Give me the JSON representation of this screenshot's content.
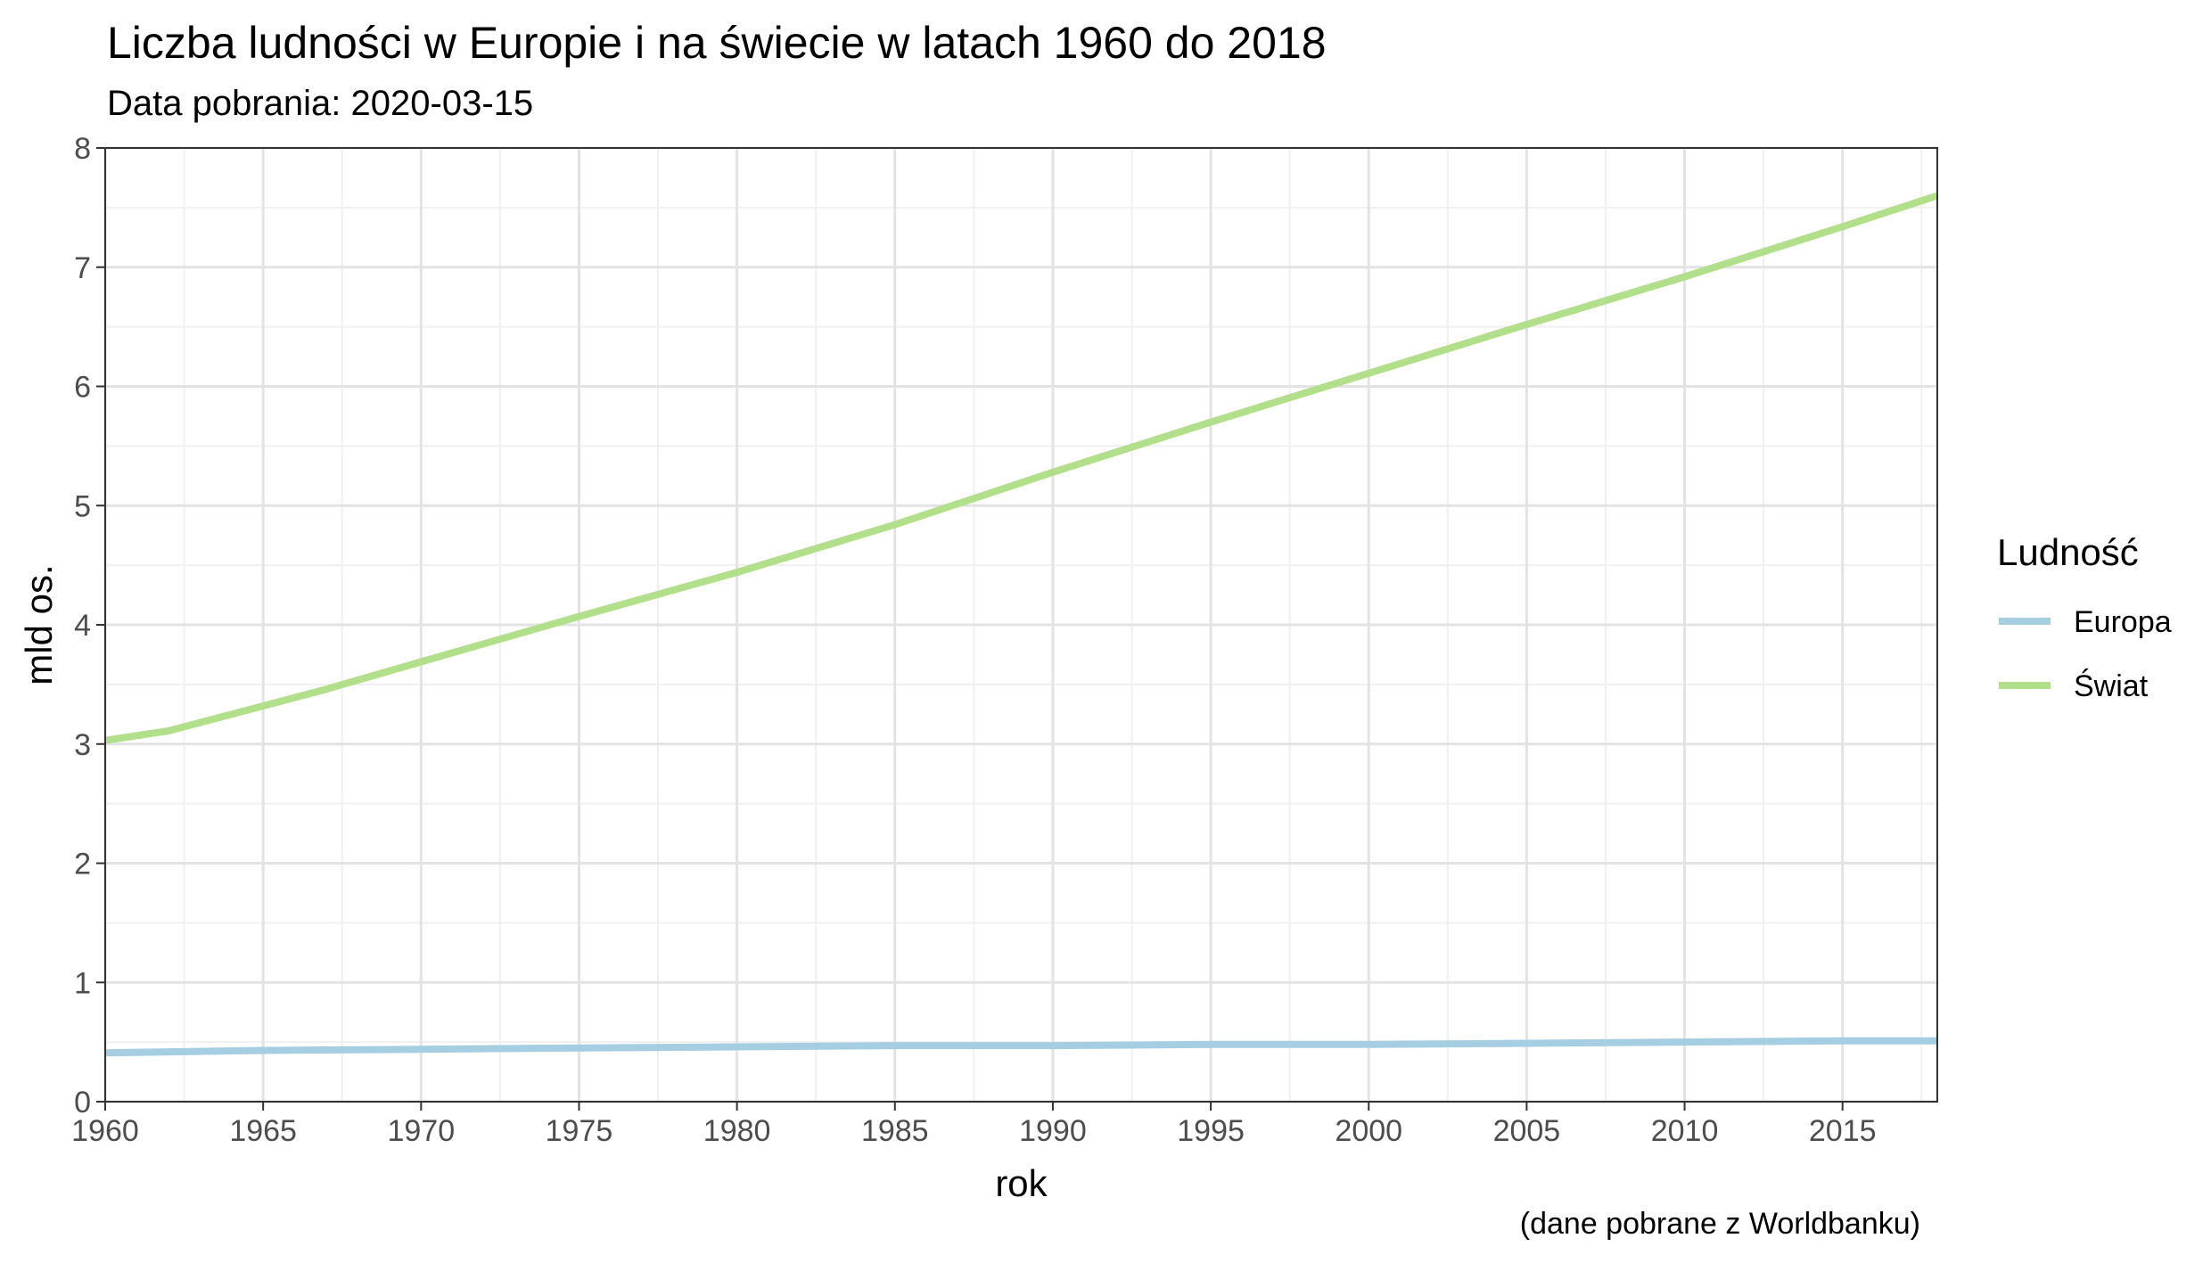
{
  "title": "Liczba ludności w Europie i na świecie w latach 1960 do 2018",
  "subtitle": "Data pobrania: 2020-03-15",
  "caption": "(dane pobrane z Worldbanku)",
  "chart_data": {
    "type": "line",
    "xlabel": "rok",
    "ylabel": "mld os.",
    "xlim": [
      1960,
      2018
    ],
    "ylim": [
      0,
      8
    ],
    "x_ticks": [
      "1960",
      "1965",
      "1970",
      "1975",
      "1980",
      "1985",
      "1990",
      "1995",
      "2000",
      "2005",
      "2010",
      "2015"
    ],
    "y_ticks": [
      "0",
      "1",
      "2",
      "3",
      "4",
      "5",
      "6",
      "7",
      "8"
    ],
    "grid": true,
    "legend": {
      "title": "Ludność",
      "position": "right"
    },
    "series": [
      {
        "name": "Europa",
        "color": "#a6cee3",
        "x": [
          1960,
          1965,
          1970,
          1975,
          1980,
          1985,
          1990,
          1995,
          2000,
          2005,
          2010,
          2015,
          2018
        ],
        "values": [
          0.41,
          0.43,
          0.44,
          0.45,
          0.46,
          0.47,
          0.47,
          0.48,
          0.48,
          0.49,
          0.5,
          0.51,
          0.51
        ]
      },
      {
        "name": "Świat",
        "color": "#b2df8a",
        "x": [
          1960,
          1962,
          1965,
          1967,
          1970,
          1975,
          1980,
          1985,
          1990,
          1995,
          2000,
          2005,
          2010,
          2015,
          2018
        ],
        "values": [
          3.03,
          3.11,
          3.32,
          3.46,
          3.69,
          4.07,
          4.44,
          4.84,
          5.28,
          5.7,
          6.11,
          6.52,
          6.92,
          7.34,
          7.6
        ]
      }
    ]
  }
}
